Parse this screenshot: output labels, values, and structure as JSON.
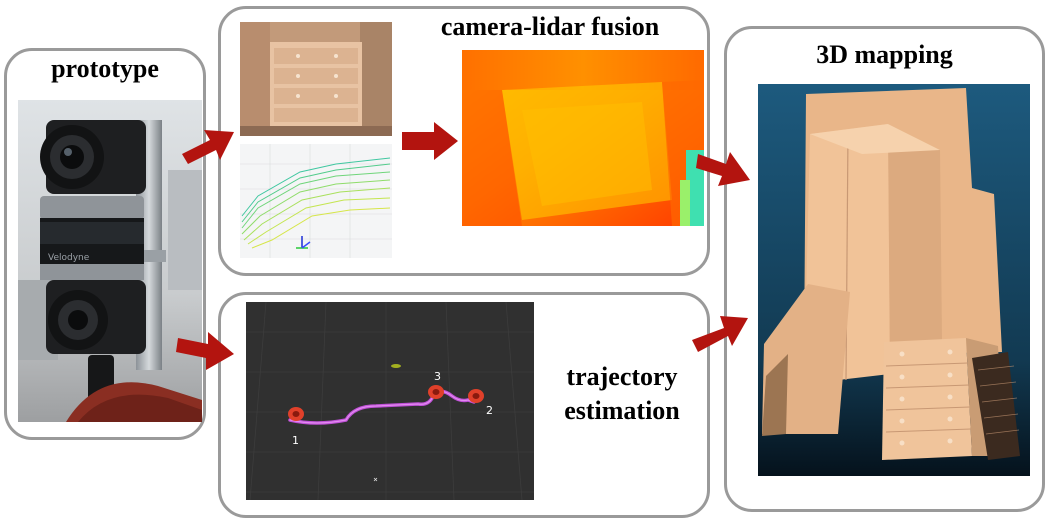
{
  "panels": {
    "prototype": {
      "title": "prototype",
      "sensor_brand": "Velodyne"
    },
    "fusion": {
      "title": "camera-lidar fusion"
    },
    "trajectory": {
      "title_line1": "trajectory",
      "title_line2": "estimation",
      "waypoints": [
        "1",
        "2",
        "3"
      ]
    },
    "mapping": {
      "title": "3D mapping"
    }
  },
  "colors": {
    "panel_border": "#9a9a9a",
    "arrow_fill": "#b3140f",
    "trajectory_path": "#c050d8",
    "waypoint_marker": "#e0402a",
    "rviz_background": "#303030",
    "map_background": "#1d5a7e"
  }
}
